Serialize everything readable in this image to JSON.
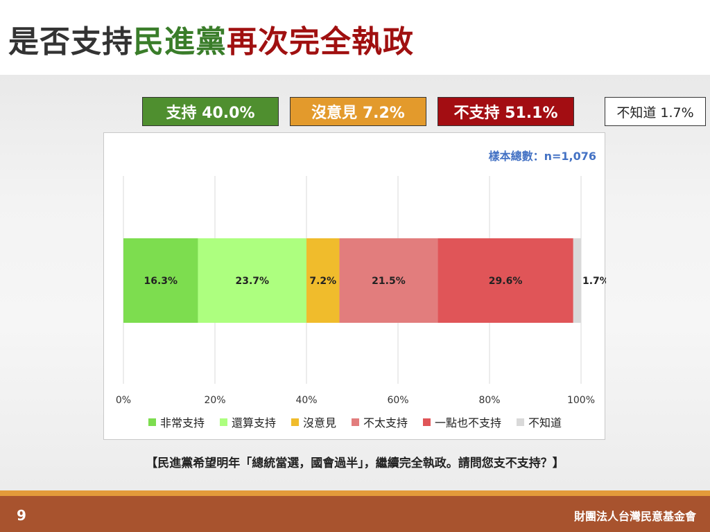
{
  "title": {
    "part1": "是否支持",
    "part2": "民進黨",
    "part3": "再次完全執政"
  },
  "colors": {
    "title_dark": "#333333",
    "title_green": "#3a7d2a",
    "title_red": "#a01010"
  },
  "summary": [
    {
      "label": "支持 40.0%",
      "color": "#4f8f2f"
    },
    {
      "label": "沒意見 7.2%",
      "color": "#e39a2c"
    },
    {
      "label": "不支持 51.1%",
      "color": "#a30d12"
    },
    {
      "label": "不知道 1.7%",
      "color": "#ffffff"
    }
  ],
  "sample_size": "樣本總數：n=1,076",
  "chart_data": {
    "type": "bar",
    "orientation": "horizontal-stacked-100",
    "xlim": [
      0,
      100
    ],
    "xticks": [
      "0%",
      "20%",
      "40%",
      "60%",
      "80%",
      "100%"
    ],
    "grid": true,
    "legend_position": "bottom",
    "series": [
      {
        "name": "非常支持",
        "value": 16.3,
        "label": "16.3%",
        "color": "#7ddd4f"
      },
      {
        "name": "還算支持",
        "value": 23.7,
        "label": "23.7%",
        "color": "#adff7f"
      },
      {
        "name": "沒意見",
        "value": 7.2,
        "label": "7.2%",
        "color": "#f0bc2c"
      },
      {
        "name": "不太支持",
        "value": 21.5,
        "label": "21.5%",
        "color": "#e27d7d"
      },
      {
        "name": "一點也不支持",
        "value": 29.6,
        "label": "29.6%",
        "color": "#e05558"
      },
      {
        "name": "不知道",
        "value": 1.7,
        "label": "1.7%",
        "color": "#d9d9d9"
      }
    ]
  },
  "question": "【民進黨希望明年「總統當選，國會過半」，繼續完全執政。請問您支不支持？】",
  "footer": {
    "page": "9",
    "org": "財團法人台灣民意基金會"
  }
}
